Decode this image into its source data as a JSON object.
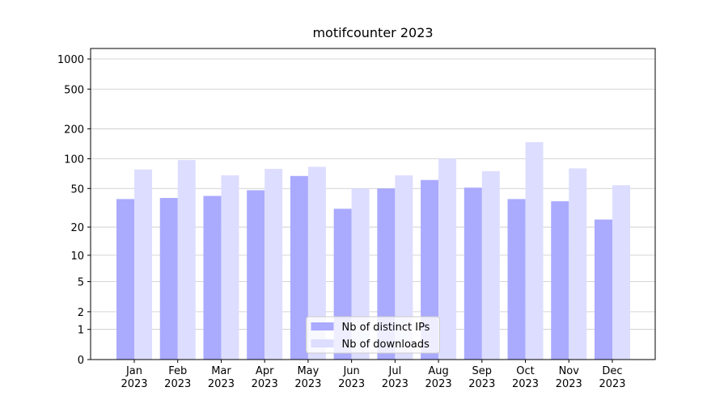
{
  "chart_data": {
    "type": "bar",
    "title": "motifcounter 2023",
    "scale": "log1p",
    "categories": [
      "Jan 2023",
      "Feb 2023",
      "Mar 2023",
      "Apr 2023",
      "May 2023",
      "Jun 2023",
      "Jul 2023",
      "Aug 2023",
      "Sep 2023",
      "Oct 2023",
      "Nov 2023",
      "Dec 2023"
    ],
    "series": [
      {
        "name": "Nb of distinct IPs",
        "color": "#aaaaff",
        "values": [
          39,
          40,
          42,
          48,
          67,
          31,
          50,
          61,
          51,
          39,
          37,
          24
        ]
      },
      {
        "name": "Nb of downloads",
        "color": "#ddddff",
        "values": [
          78,
          97,
          68,
          79,
          83,
          50,
          68,
          100,
          75,
          147,
          80,
          54
        ]
      }
    ],
    "ylim": [
      0,
      1273
    ],
    "yticks": [
      0,
      1,
      2,
      5,
      10,
      20,
      50,
      100,
      200,
      500,
      1000
    ],
    "grid": true,
    "legend": "lower center"
  }
}
